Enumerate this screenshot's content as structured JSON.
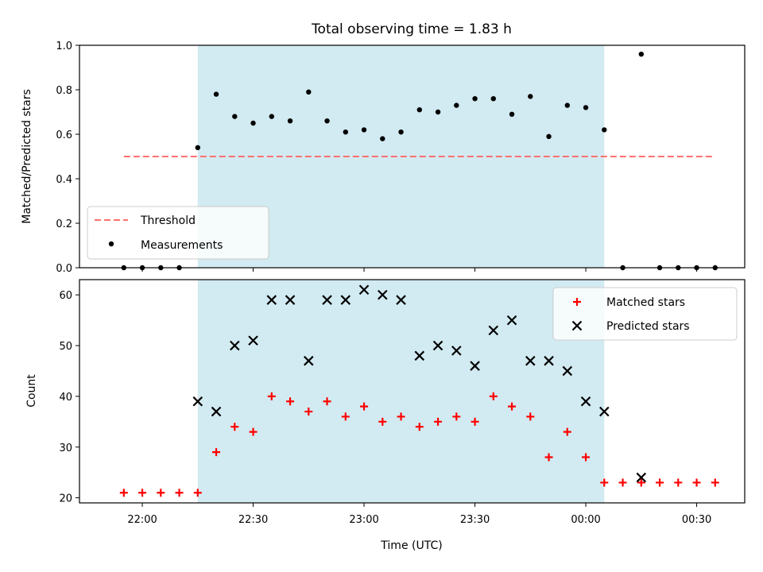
{
  "colors": {
    "shade": "#add8e6",
    "threshold": "#ff7070",
    "matched": "#ff0000",
    "predicted": "#000000",
    "measurement": "#000000"
  },
  "chart_data": [
    {
      "type": "scatter",
      "title": "Total observing time = 1.83 h",
      "xlabel": "",
      "ylabel": "Matched/Predicted stars",
      "ylim": [
        0,
        1.0
      ],
      "yticks": [
        "0.0",
        "0.2",
        "0.4",
        "0.6",
        "0.8",
        "1.0"
      ],
      "xlim": [
        "21:43",
        "00:43"
      ],
      "shaded_span": [
        "22:15",
        "00:05"
      ],
      "threshold": {
        "name": "Threshold",
        "value": 0.5,
        "x_range": [
          "21:55",
          "00:35"
        ]
      },
      "series": [
        {
          "name": "Measurements",
          "x": [
            "21:55",
            "22:00",
            "22:05",
            "22:10",
            "22:15",
            "22:20",
            "22:25",
            "22:30",
            "22:35",
            "22:40",
            "22:45",
            "22:50",
            "22:55",
            "23:00",
            "23:05",
            "23:10",
            "23:15",
            "23:20",
            "23:25",
            "23:30",
            "23:35",
            "23:40",
            "23:45",
            "23:50",
            "23:55",
            "00:00",
            "00:05",
            "00:10",
            "00:15",
            "00:20",
            "00:25",
            "00:30",
            "00:35"
          ],
          "values": [
            0,
            0,
            0,
            0,
            0.54,
            0.78,
            0.68,
            0.65,
            0.68,
            0.66,
            0.79,
            0.66,
            0.61,
            0.62,
            0.58,
            0.61,
            0.71,
            0.7,
            0.73,
            0.76,
            0.76,
            0.69,
            0.77,
            0.59,
            0.73,
            0.72,
            0.62,
            0,
            0.96,
            0,
            0,
            0,
            0
          ]
        }
      ],
      "legend": "lower-left"
    },
    {
      "type": "scatter",
      "title": "",
      "xlabel": "Time (UTC)",
      "ylabel": "Count",
      "ylim": [
        19,
        63
      ],
      "yticks": [
        "20",
        "30",
        "40",
        "50",
        "60"
      ],
      "xticks": [
        "22:00",
        "22:30",
        "23:00",
        "23:30",
        "00:00",
        "00:30"
      ],
      "xlim": [
        "21:43",
        "00:43"
      ],
      "shaded_span": [
        "22:15",
        "00:05"
      ],
      "series": [
        {
          "name": "Matched stars",
          "x": [
            "21:55",
            "22:00",
            "22:05",
            "22:10",
            "22:15",
            "22:20",
            "22:25",
            "22:30",
            "22:35",
            "22:40",
            "22:45",
            "22:50",
            "22:55",
            "23:00",
            "23:05",
            "23:10",
            "23:15",
            "23:20",
            "23:25",
            "23:30",
            "23:35",
            "23:40",
            "23:45",
            "23:50",
            "23:55",
            "00:00",
            "00:05",
            "00:10",
            "00:15",
            "00:20",
            "00:25",
            "00:30",
            "00:35"
          ],
          "values": [
            21,
            21,
            21,
            21,
            21,
            29,
            34,
            33,
            40,
            39,
            37,
            39,
            36,
            38,
            35,
            36,
            34,
            35,
            36,
            35,
            40,
            38,
            36,
            28,
            33,
            28,
            23,
            23,
            23,
            23,
            23,
            23,
            23
          ]
        },
        {
          "name": "Predicted stars",
          "x": [
            "22:15",
            "22:20",
            "22:25",
            "22:30",
            "22:35",
            "22:40",
            "22:45",
            "22:50",
            "22:55",
            "23:00",
            "23:05",
            "23:10",
            "23:15",
            "23:20",
            "23:25",
            "23:30",
            "23:35",
            "23:40",
            "23:45",
            "23:50",
            "23:55",
            "00:00",
            "00:05",
            "00:15"
          ],
          "values": [
            39,
            37,
            50,
            51,
            59,
            59,
            47,
            59,
            59,
            61,
            60,
            59,
            48,
            50,
            49,
            46,
            53,
            55,
            47,
            47,
            45,
            39,
            37,
            24
          ]
        }
      ],
      "legend": "top-right"
    }
  ]
}
